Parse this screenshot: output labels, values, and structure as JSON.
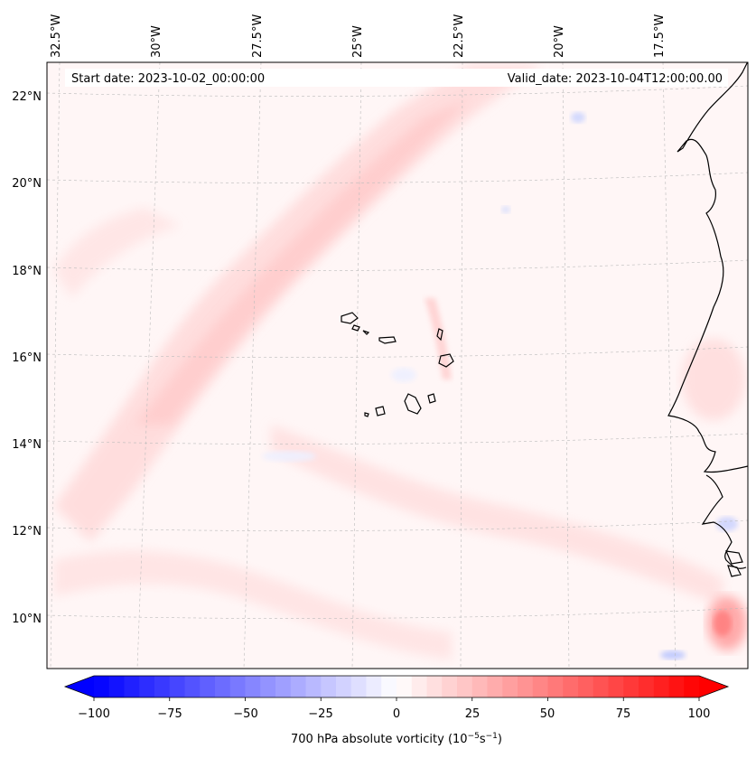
{
  "map": {
    "start_label": "Start date: 2023-10-02_00:00:00",
    "valid_label": "Valid_date: 2023-10-04T12:00:00.00",
    "lon_labels": [
      "32.5°W",
      "30°W",
      "27.5°W",
      "25°W",
      "22.5°W",
      "20°W",
      "17.5°W"
    ],
    "lat_labels": [
      "22°N",
      "20°N",
      "18°N",
      "16°N",
      "14°N",
      "12°N",
      "10°N"
    ],
    "field": "700 hPa absolute vorticity",
    "units_note": "10^-5 s^-1"
  },
  "colorbar": {
    "label_text": "700 hPa absolute vorticity (10",
    "label_exp1": "−5",
    "label_mid": "s",
    "label_exp2": "−1",
    "label_close": ")",
    "range": [
      -100,
      100
    ],
    "ticks": [
      "−100",
      "−75",
      "−50",
      "−25",
      "0",
      "25",
      "50",
      "75",
      "100"
    ],
    "colormap": "bwr",
    "neg_color": "#0000ff",
    "mid_color": "#ffffff",
    "pos_color": "#ff0000"
  }
}
